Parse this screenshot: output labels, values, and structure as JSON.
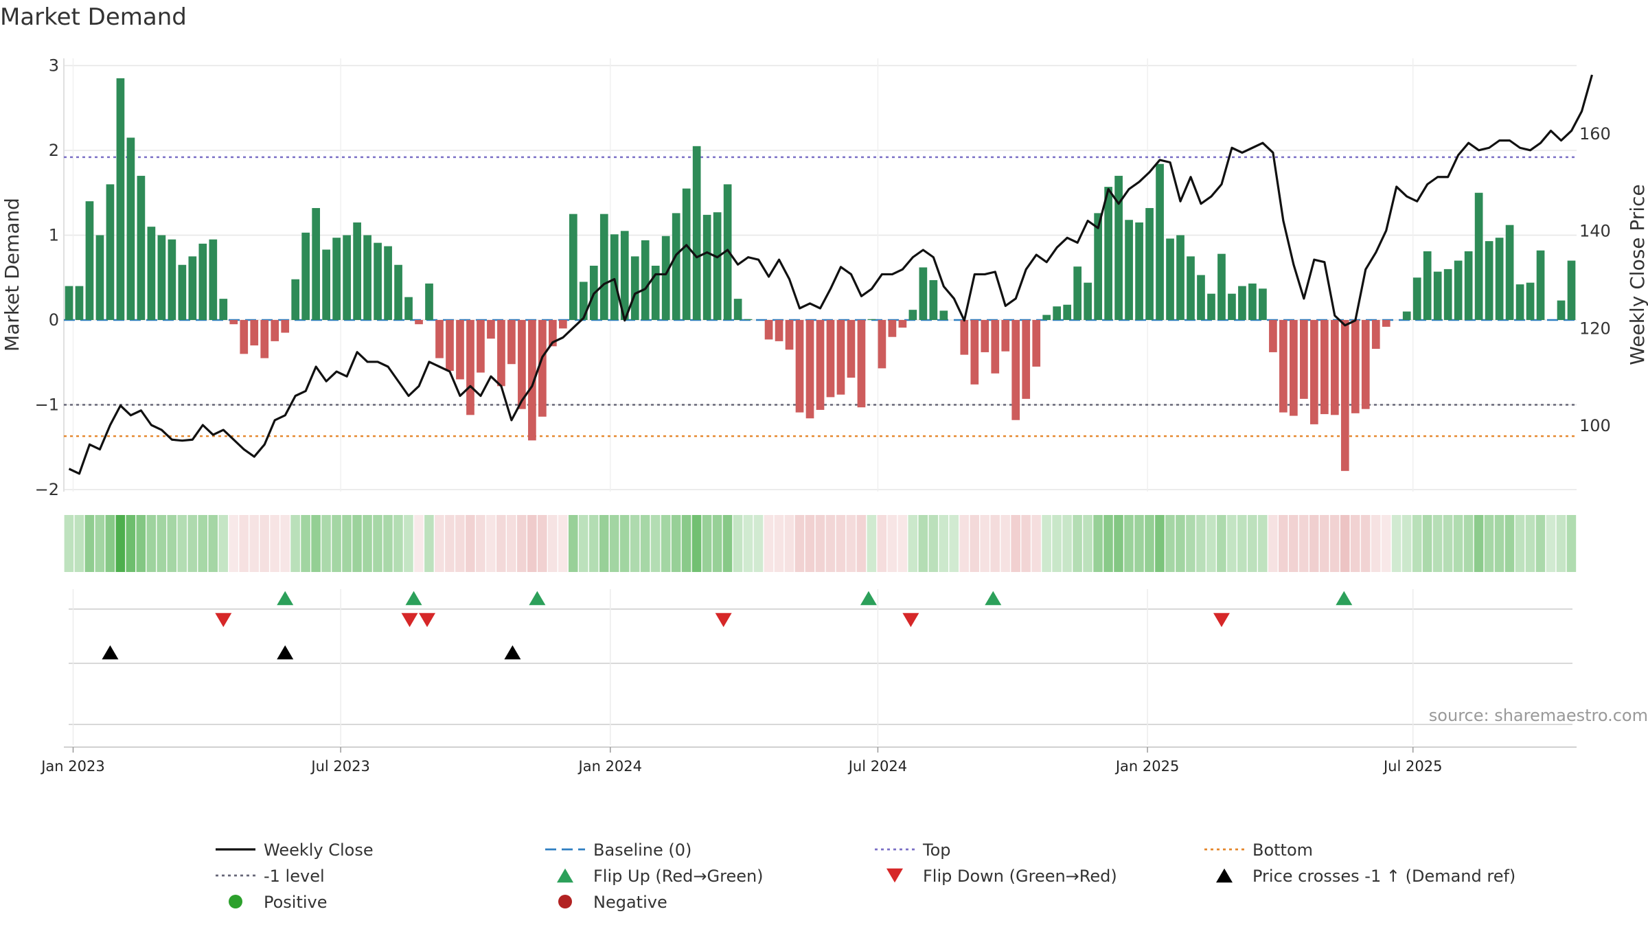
{
  "chart_data": {
    "type": "bar",
    "title": "Market Demand",
    "source": "source: sharemaestro.com",
    "ylabel_left": "Market Demand",
    "ylabel_right": "Weekly Close Price",
    "ylim_left": [
      -2.1,
      3.0
    ],
    "ylim_right": [
      83,
      174
    ],
    "yticks_left": [
      3,
      2,
      1,
      0,
      -1,
      -2
    ],
    "yticks_left_labels": [
      "3",
      "2",
      "1",
      "0",
      "−1",
      "−2"
    ],
    "yticks_right": [
      160,
      140,
      120,
      100
    ],
    "yticks_right_labels": [
      "160",
      "140",
      "120",
      "100"
    ],
    "x_start": "2022-12-26",
    "x_weeks": 144,
    "x_ticks": [
      {
        "label": "Jan 2023",
        "week": 0.9
      },
      {
        "label": "Jul 2023",
        "week": 26.9
      },
      {
        "label": "Jan 2024",
        "week": 53.1
      },
      {
        "label": "Jul 2024",
        "week": 79.1
      },
      {
        "label": "Jan 2025",
        "week": 105.3
      },
      {
        "label": "Jul 2025",
        "week": 131.1
      }
    ],
    "reference_lines": [
      {
        "name": "Top",
        "value": 1.92,
        "color": "#7b70c6"
      },
      {
        "name": "-1 level",
        "value": -1.0,
        "color": "#666677"
      },
      {
        "name": "Bottom",
        "value": -1.37,
        "color": "#e5862b"
      },
      {
        "name": "Baseline (0)",
        "value": 0.0,
        "color": "#2f7fc1"
      }
    ],
    "demand": [
      0.4,
      0.4,
      1.4,
      1.0,
      1.6,
      2.85,
      2.15,
      1.7,
      1.1,
      1.0,
      0.95,
      0.65,
      0.75,
      0.9,
      0.95,
      0.25,
      -0.05,
      -0.4,
      -0.3,
      -0.45,
      -0.25,
      -0.15,
      0.48,
      1.03,
      1.32,
      0.83,
      0.97,
      1.0,
      1.15,
      1.0,
      0.91,
      0.87,
      0.65,
      0.27,
      -0.05,
      0.43,
      -0.45,
      -0.6,
      -0.7,
      -1.12,
      -0.62,
      -0.22,
      -0.78,
      -0.52,
      -1.05,
      -1.42,
      -1.14,
      -0.31,
      -0.1,
      1.25,
      0.45,
      0.64,
      1.25,
      1.01,
      1.05,
      0.75,
      0.94,
      0.64,
      0.99,
      1.26,
      1.55,
      2.05,
      1.24,
      1.27,
      1.6,
      0.25,
      0.01,
      0.0,
      -0.23,
      -0.25,
      -0.35,
      -1.09,
      -1.16,
      -1.06,
      -0.91,
      -0.88,
      -0.68,
      -1.03,
      0.01,
      -0.57,
      -0.2,
      -0.09,
      0.12,
      0.62,
      0.47,
      0.11,
      0.0,
      -0.41,
      -0.76,
      -0.38,
      -0.63,
      -0.37,
      -1.18,
      -0.93,
      -0.55,
      0.06,
      0.16,
      0.18,
      0.63,
      0.44,
      1.26,
      1.57,
      1.7,
      1.18,
      1.15,
      1.32,
      1.84,
      0.96,
      1.0,
      0.75,
      0.53,
      0.31,
      0.78,
      0.31,
      0.4,
      0.43,
      0.37,
      -0.38,
      -1.09,
      -1.13,
      -0.93,
      -1.23,
      -1.11,
      -1.12,
      -1.78,
      -1.1,
      -1.05,
      -0.34,
      -0.08,
      0.0,
      0.1,
      0.5,
      0.81,
      0.57,
      0.6,
      0.7,
      0.81,
      1.5,
      0.93,
      0.97,
      1.12,
      0.42,
      0.44,
      0.82,
      0.0,
      0.23,
      0.7
    ],
    "weekly_close": [
      91,
      90,
      96,
      95,
      100,
      104,
      102,
      103,
      100,
      99,
      97,
      96.8,
      97,
      100,
      98,
      99,
      97,
      95,
      93.5,
      96,
      101,
      102,
      106,
      107,
      112,
      109,
      111,
      110,
      115,
      113,
      113,
      112,
      109,
      106,
      108,
      113,
      112,
      111,
      106,
      108,
      106,
      110,
      108,
      101,
      105,
      108,
      114,
      117,
      118,
      120,
      122,
      127,
      129,
      130,
      121.5,
      127,
      128,
      131,
      131,
      135,
      137,
      134.5,
      135.5,
      134.5,
      136,
      133,
      134.5,
      134,
      130.5,
      134,
      130,
      124,
      125,
      124,
      128,
      132.5,
      131,
      126.5,
      128,
      131,
      131,
      132,
      134.5,
      136,
      134.5,
      128.5,
      126,
      121.5,
      131,
      131,
      131.5,
      124.5,
      126,
      132,
      135,
      133.5,
      136.5,
      138.5,
      137.5,
      142,
      140.5,
      148.5,
      145.5,
      148.5,
      150,
      152,
      154.5,
      154,
      146,
      151,
      145.5,
      147,
      149.5,
      157,
      156,
      157,
      158,
      156,
      142,
      133,
      126,
      134,
      133.5,
      122.5,
      120.5,
      121.5,
      132,
      135.5,
      140,
      149,
      147,
      146,
      149.5,
      151,
      151,
      155.5,
      158,
      156.5,
      157,
      158.5,
      158.5,
      157,
      156.5,
      158,
      160.5,
      158.5,
      160.5,
      164.5,
      172
    ]
  },
  "event_rows": {
    "flip_up_weeks": [
      21.5,
      34,
      46,
      78.2,
      90.3,
      124.4
    ],
    "flip_down_weeks": [
      15.5,
      33.6,
      35.3,
      64.1,
      82.3,
      112.5
    ],
    "price_cross_weeks": [
      4.5,
      21.5,
      43.6
    ]
  },
  "legend": [
    {
      "label": "Weekly Close",
      "symbol": "line",
      "color": "#111111"
    },
    {
      "label": "Baseline (0)",
      "symbol": "dash",
      "color": "#2f7fc1"
    },
    {
      "label": "Top",
      "symbol": "dot",
      "color": "#7b70c6"
    },
    {
      "label": "Bottom",
      "symbol": "dot",
      "color": "#e5862b"
    },
    {
      "label": "-1 level",
      "symbol": "dot",
      "color": "#666677"
    },
    {
      "label": "Flip Up (Red→Green)",
      "symbol": "tri-up",
      "color": "#2ca05a"
    },
    {
      "label": "Flip Down (Green→Red)",
      "symbol": "tri-down",
      "color": "#d62728"
    },
    {
      "label": "Price crosses -1 ↑ (Demand ref)",
      "symbol": "tri-up",
      "color": "#000000"
    },
    {
      "label": "Positive",
      "symbol": "circle",
      "color": "#2ca02c"
    },
    {
      "label": "Negative",
      "symbol": "circle",
      "color": "#b22222"
    }
  ],
  "colors": {
    "positive_bar": "#2e8b57",
    "negative_bar": "#cd5c5c",
    "heat_positive": "#2ca02c",
    "heat_negative": "#cd5c5c",
    "price_line": "#111111",
    "grid": "#e6e6e6",
    "axis": "#d9d9d9"
  }
}
